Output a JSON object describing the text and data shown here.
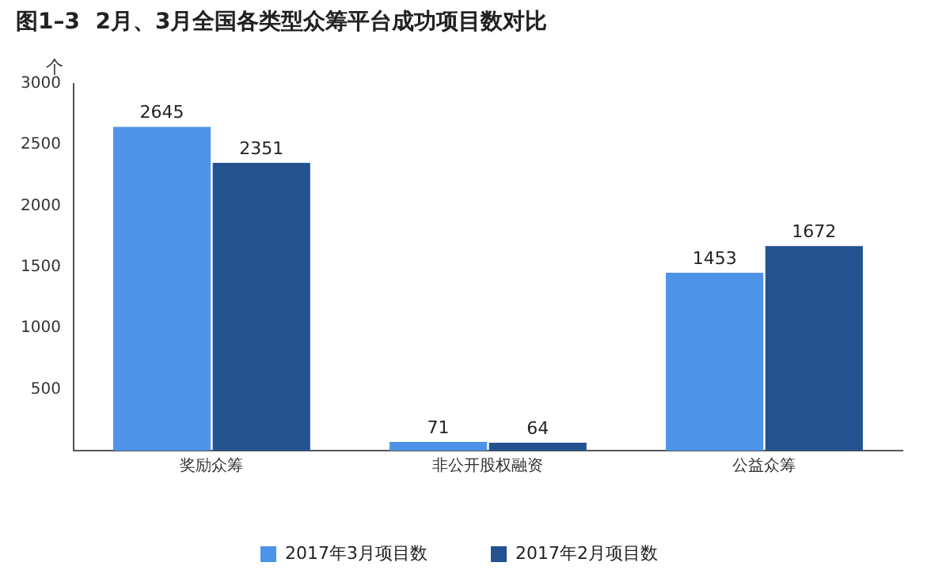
{
  "chart_data": {
    "type": "bar",
    "title": "图1–3  2月、3月全国各类型众筹平台成功项目数对比",
    "ylabel": "个",
    "categories": [
      "奖励众筹",
      "非公开股权融资",
      "公益众筹"
    ],
    "series": [
      {
        "name": "2017年3月项目数",
        "color": "#4d94e8",
        "values": [
          2645,
          71,
          1453
        ]
      },
      {
        "name": "2017年2月项目数",
        "color": "#24528f",
        "values": [
          2351,
          64,
          1672
        ]
      }
    ],
    "ylim": [
      0,
      3000
    ],
    "yticks": [
      500,
      1000,
      1500,
      2000,
      2500,
      3000
    ],
    "grid": false,
    "legend": "bottom",
    "data_labels": true
  }
}
